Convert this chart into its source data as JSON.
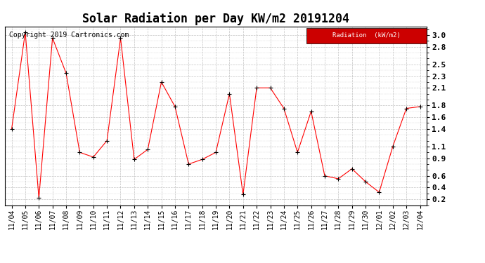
{
  "title": "Solar Radiation per Day KW/m2 20191204",
  "copyright": "Copyright 2019 Cartronics.com",
  "legend_label": "Radiation  (kW/m2)",
  "x_labels": [
    "11/04",
    "11/05",
    "11/06",
    "11/07",
    "11/08",
    "11/09",
    "11/10",
    "11/11",
    "11/12",
    "11/13",
    "11/14",
    "11/15",
    "11/16",
    "11/17",
    "11/18",
    "11/19",
    "11/20",
    "11/21",
    "11/22",
    "11/23",
    "11/24",
    "11/25",
    "11/26",
    "11/27",
    "11/28",
    "11/29",
    "11/30",
    "12/01",
    "12/02",
    "12/03",
    "12/04"
  ],
  "y_values": [
    1.4,
    3.05,
    0.22,
    2.95,
    2.35,
    1.0,
    0.92,
    1.2,
    2.95,
    0.88,
    1.05,
    2.2,
    1.78,
    0.8,
    0.88,
    1.0,
    2.0,
    0.28,
    2.1,
    2.1,
    1.75,
    1.0,
    1.7,
    0.6,
    0.55,
    0.72,
    0.5,
    0.32,
    1.1,
    1.75,
    1.78
  ],
  "line_color": "red",
  "marker_color": "black",
  "bg_color": "white",
  "grid_color": "#bbbbbb",
  "ylim": [
    0.1,
    3.15
  ],
  "ytick_values": [
    0.2,
    0.4,
    0.6,
    0.9,
    1.1,
    1.4,
    1.6,
    1.8,
    2.1,
    2.3,
    2.5,
    2.8,
    3.0
  ],
  "legend_bg": "#cc0000",
  "legend_text_color": "white",
  "title_fontsize": 12,
  "tick_fontsize": 7,
  "copyright_fontsize": 7,
  "marker_size": 25
}
